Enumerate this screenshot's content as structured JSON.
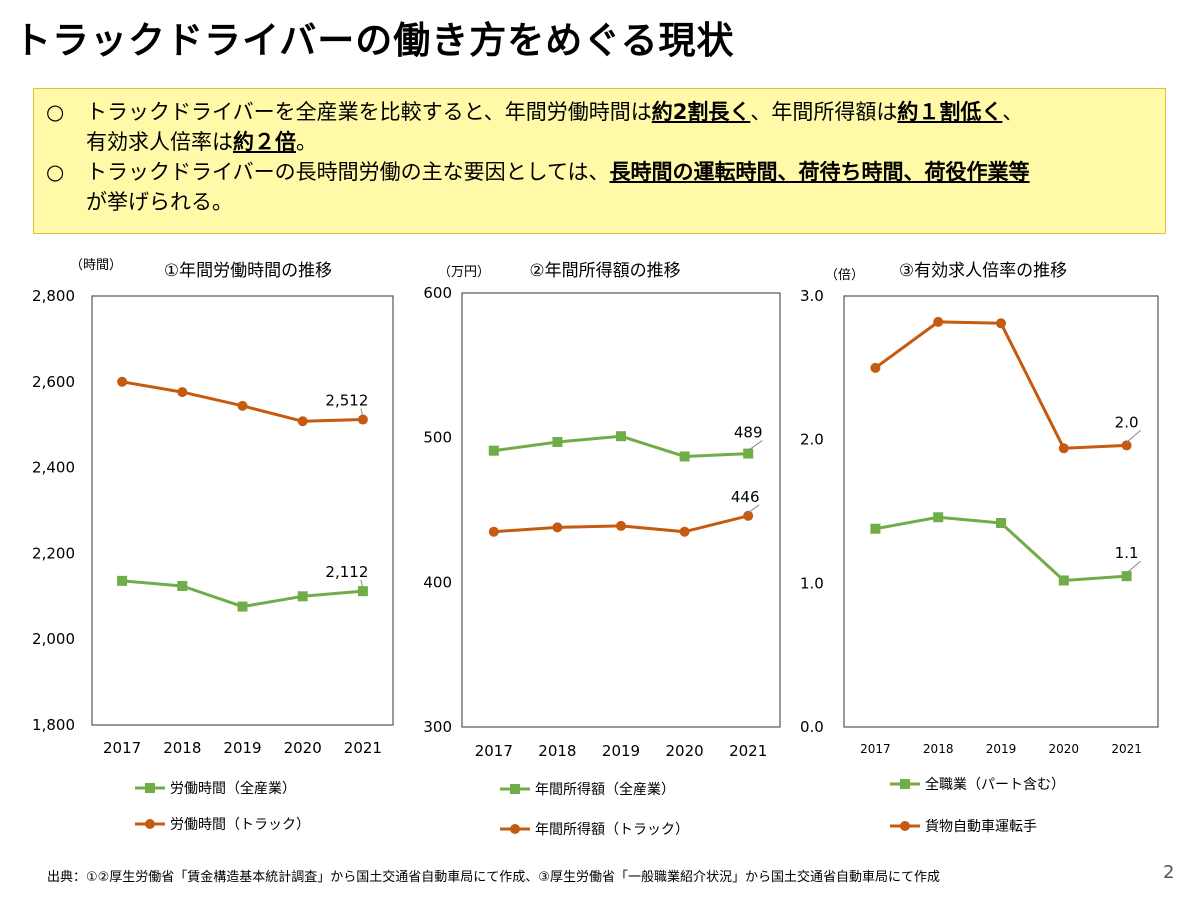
{
  "page": {
    "title": "トラックドライバーの働き方をめぐる現状",
    "summary": {
      "bullet": "○",
      "l1_pre": "トラックドライバーを全産業を比較すると、年間労働時間は",
      "l1_b1": "約2割長く",
      "l1_mid": "、年間所得額は",
      "l1_b2": "約１割低く",
      "l1_post": "、",
      "l2_pre": "有効求人倍率は",
      "l2_b": "約２倍",
      "l2_post": "。",
      "l3_pre": "トラックドライバーの長時間労働の主な要因としては、",
      "l3_b": "長時間の運転時間、荷待ち時間、荷役作業等",
      "l4": "が挙げられる。"
    },
    "source": "出典：①②厚生労働省「賃金構造基本統計調査」から国土交通省自動車局にて作成、③厚生労働省「一般職業紹介状況」から国土交通省自動車局にて作成",
    "page_number": "2"
  },
  "colors": {
    "orange": "#c55a11",
    "green": "#70ad47",
    "axis": "#555555"
  },
  "chart_data": [
    {
      "type": "line",
      "title": "①年間労働時間の推移",
      "unit": "（時間）",
      "categories": [
        "2017",
        "2018",
        "2019",
        "2020",
        "2021"
      ],
      "ylim": [
        1800,
        2800
      ],
      "yticks": [
        "2,800",
        "2,600",
        "2,400",
        "2,200",
        "2,000",
        "1,800"
      ],
      "yticks_values": [
        2800,
        2600,
        2400,
        2200,
        2000,
        1800
      ],
      "series": [
        {
          "name": "労働時間（全産業）",
          "color": "green",
          "marker": "square",
          "values": [
            2136,
            2124,
            2076,
            2100,
            2112
          ],
          "end_label": "2,112"
        },
        {
          "name": "労働時間（トラック）",
          "color": "orange",
          "marker": "circle",
          "values": [
            2600,
            2576,
            2544,
            2508,
            2512
          ],
          "end_label": "2,512"
        }
      ]
    },
    {
      "type": "line",
      "title": "②年間所得額の推移",
      "unit": "（万円）",
      "categories": [
        "2017",
        "2018",
        "2019",
        "2020",
        "2021"
      ],
      "ylim": [
        300,
        600
      ],
      "yticks": [
        "600",
        "500",
        "400",
        "300"
      ],
      "yticks_values": [
        600,
        500,
        400,
        300
      ],
      "series": [
        {
          "name": "年間所得額（全産業）",
          "color": "green",
          "marker": "square",
          "values": [
            491,
            497,
            501,
            487,
            489
          ],
          "end_label": "489"
        },
        {
          "name": "年間所得額（トラック）",
          "color": "orange",
          "marker": "circle",
          "values": [
            435,
            438,
            439,
            435,
            446
          ],
          "end_label": "446"
        }
      ]
    },
    {
      "type": "line",
      "title": "③有効求人倍率の推移",
      "unit": "（倍）",
      "categories": [
        "2017",
        "2018",
        "2019",
        "2020",
        "2021"
      ],
      "ylim": [
        0,
        3
      ],
      "yticks": [
        "3.0",
        "2.0",
        "1.0",
        "0.0"
      ],
      "yticks_values": [
        3,
        2,
        1,
        0
      ],
      "series": [
        {
          "name": "全職業（パート含む）",
          "color": "green",
          "marker": "square",
          "values": [
            1.38,
            1.46,
            1.42,
            1.02,
            1.05
          ],
          "end_label": "1.1"
        },
        {
          "name": "貨物自動車運転手",
          "color": "orange",
          "marker": "circle",
          "values": [
            2.5,
            2.82,
            2.81,
            1.94,
            1.96
          ],
          "end_label": "2.0"
        }
      ]
    }
  ]
}
